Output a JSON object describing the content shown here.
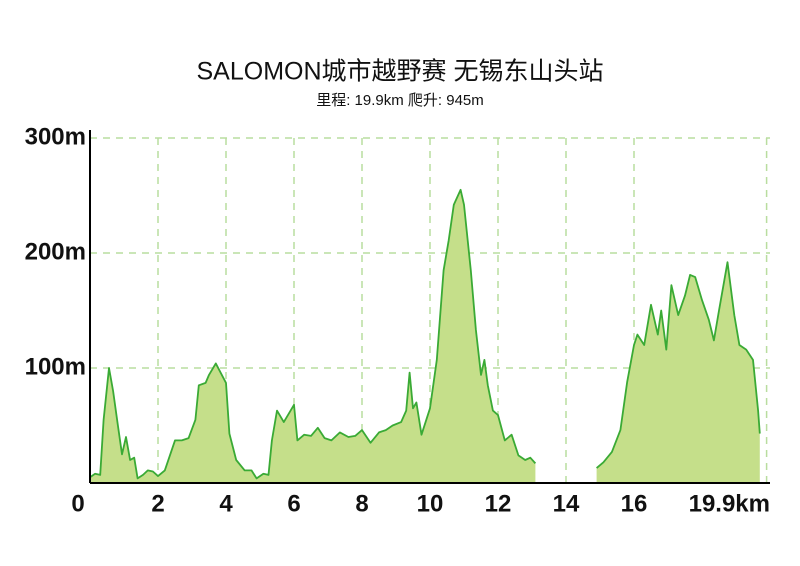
{
  "chart_data": {
    "type": "area",
    "title": "SALOMON城市越野赛 无锡东山头站",
    "subtitle": "里程: 19.9km 爬升: 945m",
    "x": [
      0,
      0.15,
      0.3,
      0.4,
      0.56,
      0.68,
      0.82,
      0.94,
      1.06,
      1.18,
      1.3,
      1.4,
      1.56,
      1.7,
      1.85,
      2.0,
      2.2,
      2.35,
      2.5,
      2.7,
      2.9,
      3.1,
      3.2,
      3.4,
      3.5,
      3.7,
      4.0,
      4.1,
      4.3,
      4.55,
      4.75,
      4.9,
      5.1,
      5.25,
      5.35,
      5.5,
      5.7,
      5.9,
      6.0,
      6.1,
      6.3,
      6.5,
      6.7,
      6.9,
      7.1,
      7.35,
      7.6,
      7.8,
      8.0,
      8.25,
      8.5,
      8.7,
      8.9,
      9.15,
      9.3,
      9.4,
      9.5,
      9.6,
      9.75,
      10.0,
      10.2,
      10.4,
      10.55,
      10.7,
      10.9,
      11.0,
      11.2,
      11.35,
      11.5,
      11.6,
      11.7,
      11.85,
      12.0,
      12.2,
      12.4,
      12.6,
      12.8,
      12.95,
      13.1,
      14.0,
      14.9,
      15.1,
      15.35,
      15.6,
      15.8,
      16.0,
      16.1,
      16.3,
      16.5,
      16.7,
      16.8,
      16.95,
      17.1,
      17.3,
      17.5,
      17.65,
      17.8,
      18.0,
      18.2,
      18.35,
      18.5,
      18.75,
      18.95,
      19.1,
      19.3,
      19.5,
      19.65,
      19.7
    ],
    "values": [
      5,
      8,
      7,
      55,
      100,
      80,
      50,
      25,
      40,
      20,
      22,
      4,
      7,
      11,
      10,
      6,
      11,
      24,
      37,
      37,
      39,
      55,
      85,
      87,
      94,
      104,
      87,
      43,
      20,
      11,
      11,
      4,
      8,
      7,
      37,
      63,
      53,
      63,
      68,
      37,
      42,
      41,
      48,
      39,
      37,
      44,
      40,
      41,
      46,
      35,
      44,
      46,
      50,
      53,
      63,
      96,
      65,
      70,
      42,
      65,
      107,
      185,
      211,
      242,
      255,
      242,
      185,
      133,
      94,
      107,
      85,
      63,
      59,
      37,
      42,
      24,
      20,
      22,
      17,
      null,
      13,
      18,
      27,
      46,
      88,
      120,
      129,
      120,
      155,
      129,
      150,
      116,
      172,
      146,
      163,
      181,
      179,
      159,
      142,
      124,
      150,
      192,
      146,
      120,
      116,
      107,
      63,
      43
    ],
    "color": "#3aaa35",
    "area_color": "#c5df8a",
    "xlim": [
      0,
      20
    ],
    "ylim": [
      0,
      300
    ],
    "xticks": [
      0,
      2,
      4,
      6,
      8,
      10,
      12,
      14,
      16,
      {
        "value": 19.9,
        "label": "19.9km"
      }
    ],
    "yticks": [
      {
        "value": 100,
        "label": "100m"
      },
      {
        "value": 200,
        "label": "200m"
      },
      {
        "value": 300,
        "label": "300m"
      }
    ],
    "grid": true
  }
}
